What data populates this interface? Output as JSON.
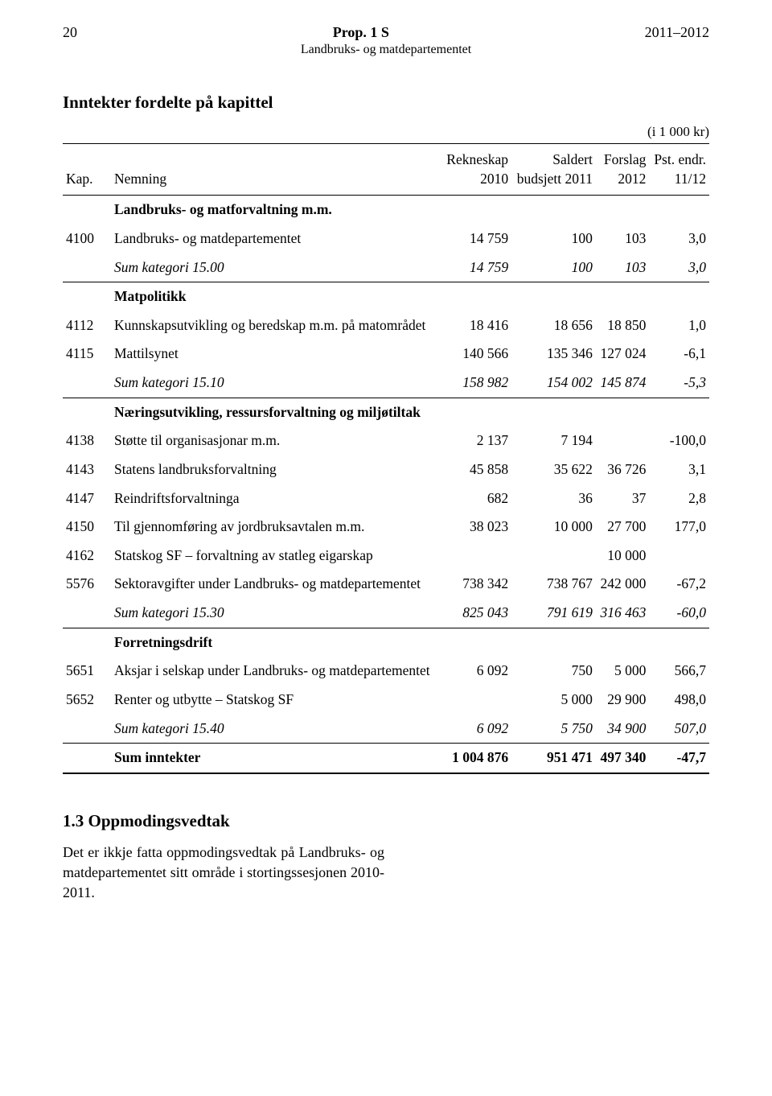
{
  "header": {
    "page_number": "20",
    "doc_title": "Prop. 1 S",
    "year_range": "2011–2012",
    "dept": "Landbruks- og matdepartementet"
  },
  "table": {
    "title": "Inntekter fordelte på kapittel",
    "unit": "(i 1 000 kr)",
    "columns": {
      "kap": "Kap.",
      "nemning": "Nemning",
      "rekneskap": "Rekneskap\n2010",
      "saldert": "Saldert\nbudsjett 2011",
      "forslag": "Forslag\n2012",
      "pst": "Pst. endr.\n11/12"
    },
    "rows": [
      {
        "kap": "",
        "name": "Landbruks- og matforvaltning m.m.",
        "c1": "",
        "c2": "",
        "c3": "",
        "c4": "",
        "style": "bold"
      },
      {
        "kap": "4100",
        "name": "Landbruks- og matdepartementet",
        "c1": "14 759",
        "c2": "100",
        "c3": "103",
        "c4": "3,0"
      },
      {
        "kap": "",
        "name": "Sum kategori 15.00",
        "c1": "14 759",
        "c2": "100",
        "c3": "103",
        "c4": "3,0",
        "style": "italic",
        "rule": "under"
      },
      {
        "kap": "",
        "name": "Matpolitikk",
        "c1": "",
        "c2": "",
        "c3": "",
        "c4": "",
        "style": "bold"
      },
      {
        "kap": "4112",
        "name": "Kunnskapsutvikling og beredskap m.m. på matområdet",
        "c1": "18 416",
        "c2": "18 656",
        "c3": "18 850",
        "c4": "1,0"
      },
      {
        "kap": "4115",
        "name": "Mattilsynet",
        "c1": "140 566",
        "c2": "135 346",
        "c3": "127 024",
        "c4": "-6,1"
      },
      {
        "kap": "",
        "name": "Sum kategori 15.10",
        "c1": "158 982",
        "c2": "154 002",
        "c3": "145 874",
        "c4": "-5,3",
        "style": "italic",
        "rule": "under"
      },
      {
        "kap": "",
        "name": "Næringsutvikling, ressursforvaltning og miljøtiltak",
        "c1": "",
        "c2": "",
        "c3": "",
        "c4": "",
        "style": "bold"
      },
      {
        "kap": "4138",
        "name": "Støtte til organisasjonar m.m.",
        "c1": "2 137",
        "c2": "7 194",
        "c3": "",
        "c4": "-100,0"
      },
      {
        "kap": "4143",
        "name": "Statens landbruksforvaltning",
        "c1": "45 858",
        "c2": "35 622",
        "c3": "36 726",
        "c4": "3,1"
      },
      {
        "kap": "4147",
        "name": "Reindriftsforvaltninga",
        "c1": "682",
        "c2": "36",
        "c3": "37",
        "c4": "2,8"
      },
      {
        "kap": "4150",
        "name": "Til gjennomføring av jordbruksavtalen m.m.",
        "c1": "38 023",
        "c2": "10 000",
        "c3": "27 700",
        "c4": "177,0"
      },
      {
        "kap": "4162",
        "name": "Statskog SF – forvaltning av statleg eigarskap",
        "c1": "",
        "c2": "",
        "c3": "10 000",
        "c4": ""
      },
      {
        "kap": "5576",
        "name": "Sektoravgifter under Landbruks- og matdepartementet",
        "c1": "738 342",
        "c2": "738 767",
        "c3": "242 000",
        "c4": "-67,2"
      },
      {
        "kap": "",
        "name": "Sum kategori 15.30",
        "c1": "825 043",
        "c2": "791 619",
        "c3": "316 463",
        "c4": "-60,0",
        "style": "italic",
        "rule": "under"
      },
      {
        "kap": "",
        "name": "Forretningsdrift",
        "c1": "",
        "c2": "",
        "c3": "",
        "c4": "",
        "style": "bold"
      },
      {
        "kap": "5651",
        "name": "Aksjar i selskap under Landbruks- og matdepartementet",
        "c1": "6 092",
        "c2": "750",
        "c3": "5 000",
        "c4": "566,7"
      },
      {
        "kap": "5652",
        "name": "Renter og utbytte – Statskog SF",
        "c1": "",
        "c2": "5 000",
        "c3": "29 900",
        "c4": "498,0"
      },
      {
        "kap": "",
        "name": "Sum kategori 15.40",
        "c1": "6 092",
        "c2": "5 750",
        "c3": "34 900",
        "c4": "507,0",
        "style": "italic",
        "rule": "under"
      },
      {
        "kap": "",
        "name": "Sum inntekter",
        "c1": "1 004 876",
        "c2": "951 471",
        "c3": "497 340",
        "c4": "-47,7",
        "style": "bold",
        "rule": "under-thick"
      }
    ]
  },
  "section": {
    "heading": "1.3   Oppmodingsvedtak",
    "body": "Det er ikkje fatta oppmodingsvedtak på Landbruks- og matdepartementet sitt område i stortingssesjonen 2010-2011."
  },
  "colors": {
    "text": "#000000",
    "background": "#ffffff",
    "rule": "#000000"
  }
}
